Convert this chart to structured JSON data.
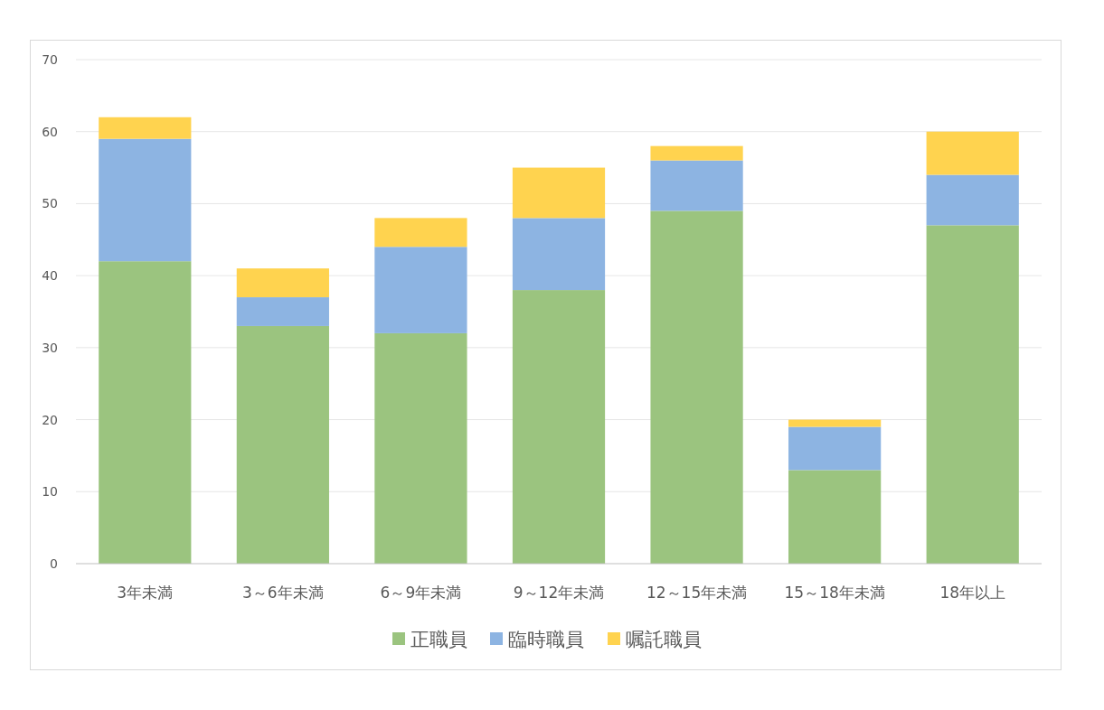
{
  "chart_data": {
    "type": "bar",
    "stacked": true,
    "categories": [
      "3年未満",
      "3～6年未満",
      "6～9年未満",
      "9～12年未満",
      "12～15年未満",
      "15～18年未満",
      "18年以上"
    ],
    "series": [
      {
        "name": "正職員",
        "color": "#9bc47f",
        "values": [
          42,
          33,
          32,
          38,
          49,
          13,
          47
        ]
      },
      {
        "name": "臨時職員",
        "color": "#8db4e2",
        "values": [
          17,
          4,
          12,
          10,
          7,
          6,
          7
        ]
      },
      {
        "name": "嘱託職員",
        "color": "#ffd34f",
        "values": [
          3,
          4,
          4,
          7,
          2,
          1,
          6
        ]
      }
    ],
    "ylim": [
      0,
      70
    ],
    "yticks": [
      0,
      10,
      20,
      30,
      40,
      50,
      60,
      70
    ],
    "grid": "y",
    "legend": "bottom"
  }
}
